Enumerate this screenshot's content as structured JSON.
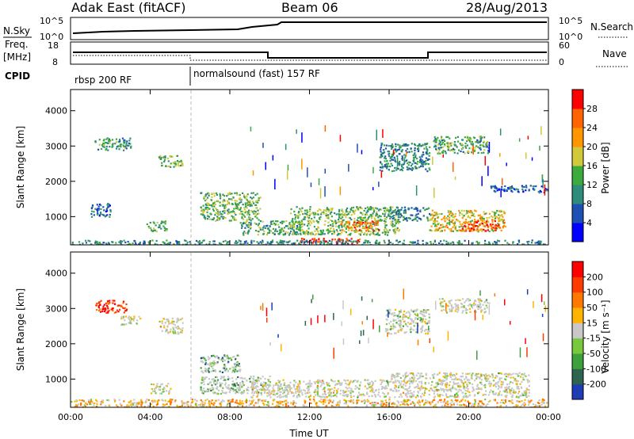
{
  "header": {
    "title": "Adak East (fitACF)",
    "beam": "Beam 06",
    "date": "28/Aug/2013"
  },
  "top_panels": {
    "nsky_label": "N.Sky",
    "nsearch_label": "N.Search",
    "freq_label": "Freq.",
    "freq_unit": "[MHz]",
    "nave_label": "Nave",
    "cpid_label": "CPID",
    "left_ticks_noise": [
      "10^5",
      "10^0"
    ],
    "right_ticks_noise": [
      "10^5",
      "10^0"
    ],
    "left_ticks_freq": [
      "18",
      "8"
    ],
    "right_ticks_nave": [
      "60",
      "0"
    ],
    "cpid_segments": [
      {
        "label": "rbsp 200 RF",
        "start_hour": 0
      },
      {
        "label": "normalsound (fast) 157 RF",
        "start_hour": 6
      }
    ]
  },
  "chart_data": [
    {
      "type": "heatmap",
      "name": "power",
      "ylabel": "Slant Range [km]",
      "xlabel": "",
      "xlim": [
        0,
        24
      ],
      "ylim": [
        200,
        4600
      ],
      "yticks": [
        "1000",
        "2000",
        "3000",
        "4000"
      ],
      "colorbar": {
        "label": "Power [dB]",
        "ticks": [
          "4",
          "8",
          "12",
          "16",
          "20",
          "24",
          "28"
        ],
        "colors": [
          "#0000ff",
          "#1e50b4",
          "#2d8c7a",
          "#3caa3c",
          "#d2c83c",
          "#ff9600",
          "#ff6400",
          "#ff0000"
        ]
      },
      "patches": [
        {
          "t0": 1.2,
          "t1": 3.0,
          "r0": 2900,
          "r1": 3250,
          "level": 0.35
        },
        {
          "t0": 4.4,
          "t1": 5.6,
          "r0": 2400,
          "r1": 2750,
          "level": 0.45
        },
        {
          "t0": 1.0,
          "t1": 2.0,
          "r0": 1000,
          "r1": 1400,
          "level": 0.25
        },
        {
          "t0": 3.8,
          "t1": 4.8,
          "r0": 600,
          "r1": 900,
          "level": 0.4
        },
        {
          "t0": 6.5,
          "t1": 9.5,
          "r0": 900,
          "r1": 1700,
          "level": 0.45
        },
        {
          "t0": 8.5,
          "t1": 11.5,
          "r0": 500,
          "r1": 900,
          "level": 0.4
        },
        {
          "t0": 11.0,
          "t1": 16.5,
          "r0": 500,
          "r1": 1300,
          "level": 0.45
        },
        {
          "t0": 13.5,
          "t1": 15.5,
          "r0": 600,
          "r1": 900,
          "level": 0.75
        },
        {
          "t0": 11.5,
          "t1": 14.5,
          "r0": 250,
          "r1": 400,
          "level": 0.9
        },
        {
          "t0": 15.5,
          "t1": 18.0,
          "r0": 2300,
          "r1": 3100,
          "level": 0.3
        },
        {
          "t0": 18.2,
          "t1": 21.0,
          "r0": 2800,
          "r1": 3300,
          "level": 0.4
        },
        {
          "t0": 18.0,
          "t1": 21.8,
          "r0": 600,
          "r1": 1200,
          "level": 0.6
        },
        {
          "t0": 19.5,
          "t1": 21.5,
          "r0": 600,
          "r1": 900,
          "level": 0.85
        },
        {
          "t0": 21.0,
          "t1": 24.0,
          "r0": 1700,
          "r1": 1900,
          "level": 0.2
        },
        {
          "t0": 16.0,
          "t1": 18.0,
          "r0": 900,
          "r1": 1300,
          "level": 0.3
        },
        {
          "t0": 0.0,
          "t1": 24.0,
          "r0": 200,
          "r1": 350,
          "level": 0.3
        }
      ]
    },
    {
      "type": "heatmap",
      "name": "velocity",
      "ylabel": "Slant Range [km]",
      "xlabel": "Time UT",
      "xlim": [
        0,
        24
      ],
      "ylim": [
        200,
        4600
      ],
      "xticks": [
        "00:00",
        "04:00",
        "08:00",
        "12:00",
        "16:00",
        "20:00",
        "00:00"
      ],
      "yticks": [
        "1000",
        "2000",
        "3000",
        "4000"
      ],
      "colorbar": {
        "label": "Velocity [m s⁻¹]",
        "ticks": [
          "200",
          "100",
          "50",
          "15",
          "-15",
          "-50",
          "-100",
          "-200"
        ],
        "colors": [
          "#1e3cb4",
          "#2d6450",
          "#3ca03c",
          "#78c83c",
          "#c8c8c8",
          "#ffb400",
          "#ff7800",
          "#ff3c00",
          "#ff0000"
        ]
      },
      "patches": [
        {
          "t0": 1.2,
          "t1": 2.8,
          "r0": 2900,
          "r1": 3250,
          "level": 0.9
        },
        {
          "t0": 2.5,
          "t1": 3.5,
          "r0": 2550,
          "r1": 2800,
          "level": 0.5
        },
        {
          "t0": 4.4,
          "t1": 5.6,
          "r0": 2300,
          "r1": 2750,
          "level": 0.5
        },
        {
          "t0": 6.5,
          "t1": 8.5,
          "r0": 1200,
          "r1": 1700,
          "level": 0.25
        },
        {
          "t0": 6.5,
          "t1": 10.0,
          "r0": 600,
          "r1": 1100,
          "level": 0.35
        },
        {
          "t0": 4.0,
          "t1": 5.0,
          "r0": 600,
          "r1": 900,
          "level": 0.5
        },
        {
          "t0": 9.0,
          "t1": 16.0,
          "r0": 500,
          "r1": 1000,
          "level": 0.5
        },
        {
          "t0": 15.8,
          "t1": 18.0,
          "r0": 2300,
          "r1": 3000,
          "level": 0.45
        },
        {
          "t0": 18.5,
          "t1": 21.0,
          "r0": 2900,
          "r1": 3300,
          "level": 0.5
        },
        {
          "t0": 16.0,
          "t1": 23.0,
          "r0": 500,
          "r1": 1200,
          "level": 0.5
        },
        {
          "t0": 0.0,
          "t1": 24.0,
          "r0": 200,
          "r1": 450,
          "level": 0.6
        }
      ]
    }
  ]
}
